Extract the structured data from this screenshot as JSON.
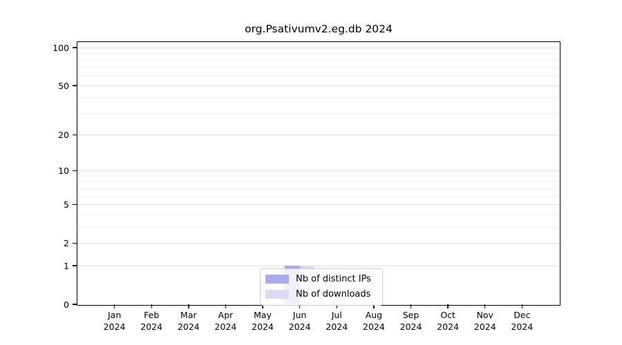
{
  "title": "org.Psativumv2.eg.db 2024",
  "chart_data": {
    "type": "bar",
    "title": "org.Psativumv2.eg.db 2024",
    "year": "2024",
    "months": [
      "Jan",
      "Feb",
      "Mar",
      "Apr",
      "May",
      "Jun",
      "Jul",
      "Aug",
      "Sep",
      "Oct",
      "Nov",
      "Dec"
    ],
    "series": [
      {
        "name": "Nb of distinct IPs",
        "color": "#aaaaef",
        "values": [
          0,
          0,
          0,
          0,
          0,
          1,
          0,
          0,
          0,
          0,
          0,
          0
        ]
      },
      {
        "name": "Nb of downloads",
        "color": "#dbdbf6",
        "values": [
          0,
          0,
          0,
          0,
          0,
          1,
          0,
          0,
          0,
          0,
          0,
          0
        ]
      }
    ],
    "yscale": "log1p",
    "ylim": [
      0,
      105
    ],
    "y_ticks": [
      0,
      1,
      2,
      5,
      10,
      20,
      50,
      100
    ],
    "y_minor_grid": [
      3,
      4,
      6,
      7,
      8,
      9,
      30,
      40,
      60,
      70,
      80,
      90
    ],
    "grid": true,
    "legend_position": "bottom-center",
    "colors": {
      "major_grid": "#dcdcdc",
      "minor_grid": "#f1f1f1",
      "frame": "#000000",
      "text": "#000000",
      "background": "#ffffff"
    }
  }
}
